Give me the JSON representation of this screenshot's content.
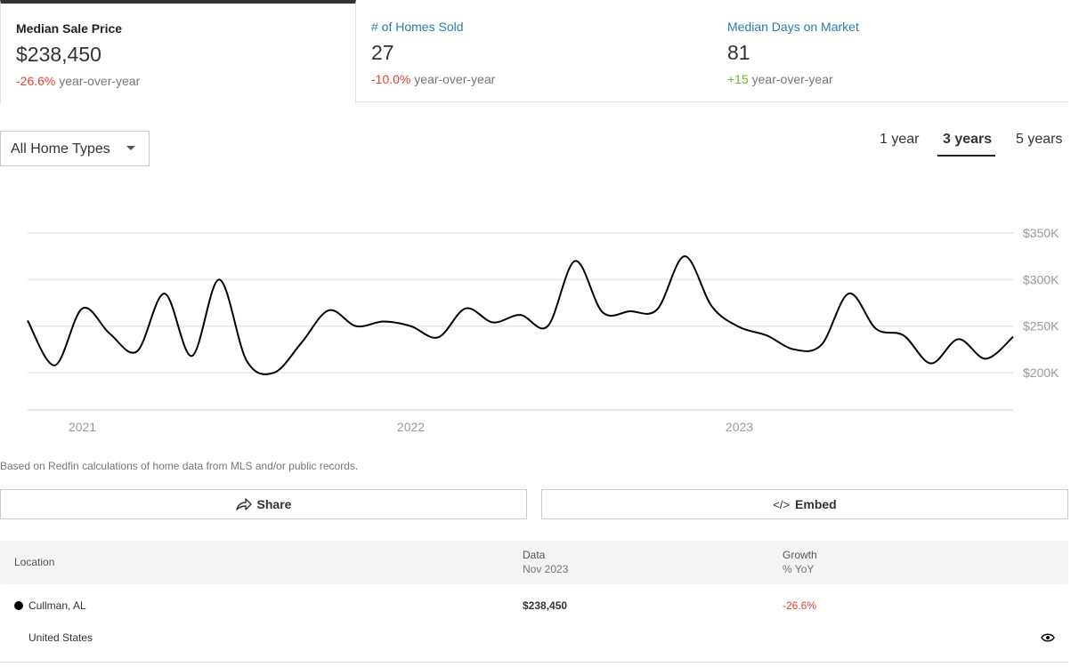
{
  "tabs": [
    {
      "label": "Median Sale Price",
      "value": "$238,450",
      "change": "-26.6%",
      "suffix": "year-over-year"
    },
    {
      "label": "# of Homes Sold",
      "value": "27",
      "change": "-10.0%",
      "suffix": "year-over-year"
    },
    {
      "label": "Median Days on Market",
      "value": "81",
      "change": "+15",
      "suffix": "year-over-year"
    }
  ],
  "filter": {
    "selected": "All Home Types"
  },
  "ranges": [
    "1 year",
    "3 years",
    "5 years"
  ],
  "chart_data": {
    "type": "line",
    "title": "Median Sale Price",
    "x": [
      "Nov 2020",
      "Dec 2020",
      "Jan 2021",
      "Feb 2021",
      "Mar 2021",
      "Apr 2021",
      "May 2021",
      "Jun 2021",
      "Jul 2021",
      "Aug 2021",
      "Sep 2021",
      "Oct 2021",
      "Nov 2021",
      "Dec 2021",
      "Jan 2022",
      "Feb 2022",
      "Mar 2022",
      "Apr 2022",
      "May 2022",
      "Jun 2022",
      "Jul 2022",
      "Aug 2022",
      "Sep 2022",
      "Oct 2022",
      "Nov 2022",
      "Dec 2022",
      "Jan 2023",
      "Feb 2023",
      "Mar 2023",
      "Apr 2023",
      "May 2023",
      "Jun 2023",
      "Jul 2023",
      "Aug 2023",
      "Sep 2023",
      "Oct 2023",
      "Nov 2023"
    ],
    "series": [
      {
        "name": "Cullman, AL",
        "values": [
          256,
          208,
          269,
          242,
          223,
          285,
          218,
          300,
          213,
          200,
          232,
          267,
          250,
          255,
          250,
          238,
          269,
          254,
          262,
          250,
          320,
          265,
          266,
          268,
          325,
          271,
          249,
          240,
          225,
          230,
          285,
          247,
          240,
          210,
          236,
          215,
          238.45
        ]
      }
    ],
    "yunit": "K USD",
    "ylim": [
      160,
      350
    ],
    "yticks": [
      "$200K",
      "$250K",
      "$300K",
      "$350K"
    ],
    "ytick_values": [
      200,
      250,
      300,
      350
    ],
    "xticks": [
      "2021",
      "2022",
      "2023"
    ],
    "xtick_index": [
      2,
      14,
      26
    ],
    "grid": true,
    "line_color": "#000000"
  },
  "note": "Based on Redfin calculations of home data from MLS and/or public records.",
  "buttons": {
    "share": "Share",
    "embed": "Embed",
    "embed_glyph": "</>"
  },
  "table": {
    "headers": {
      "location": "Location",
      "data": "Data",
      "data_sub": "Nov 2023",
      "growth": "Growth",
      "growth_sub": "% YoY"
    },
    "rows": [
      {
        "location": "Cullman, AL",
        "data": "$238,450",
        "growth": "-26.6%"
      },
      {
        "location": "United States"
      }
    ]
  }
}
